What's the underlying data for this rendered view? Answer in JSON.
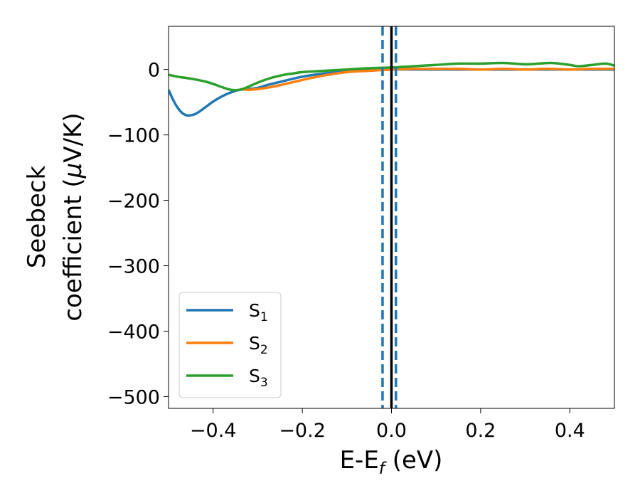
{
  "chart_data": {
    "type": "line",
    "xlabel": {
      "main": "E-E",
      "sub": "f",
      "unit": " (eV)"
    },
    "ylabel": {
      "line1": "Seebeck",
      "line2_prefix": "coefficient  (",
      "mu": "μ",
      "line2_suffix": "V/K)"
    },
    "xlim": [
      -0.5,
      0.5
    ],
    "ylim": [
      -518,
      66
    ],
    "xticks": [
      -0.4,
      -0.2,
      0.0,
      0.2,
      0.4
    ],
    "xtick_labels": [
      "−0.4",
      "−0.2",
      "0.0",
      "0.2",
      "0.4"
    ],
    "yticks": [
      0,
      -100,
      -200,
      -300,
      -400,
      -500
    ],
    "ytick_labels": [
      "0",
      "−100",
      "−200",
      "−300",
      "−400",
      "−500"
    ],
    "grid": false,
    "legend_position": "lower-left",
    "vertical_lines": [
      {
        "x": 0.0,
        "style": "solid",
        "color": "#000000"
      },
      {
        "x": -0.02,
        "style": "dashed",
        "color": "#1f77b4"
      },
      {
        "x": 0.01,
        "style": "dashed",
        "color": "#1f77b4"
      }
    ],
    "series": [
      {
        "name": "S",
        "sub": "1",
        "color": "#1f77b4",
        "x": [
          -0.5,
          -0.49,
          -0.48,
          -0.47,
          -0.46,
          -0.45,
          -0.44,
          -0.43,
          -0.42,
          -0.41,
          -0.4,
          -0.38,
          -0.36,
          -0.34,
          -0.32,
          -0.3,
          -0.28,
          -0.25,
          -0.2,
          -0.15,
          -0.1,
          -0.05,
          0.0,
          0.05,
          0.1,
          0.15,
          0.2,
          0.25,
          0.3,
          0.35,
          0.4,
          0.45,
          0.5
        ],
        "y": [
          -31,
          -46,
          -58,
          -66,
          -70,
          -70,
          -68,
          -64,
          -59,
          -54,
          -49,
          -41,
          -35,
          -31,
          -30,
          -28,
          -24,
          -19,
          -11,
          -6,
          -3,
          -1,
          0,
          0,
          0,
          0,
          0,
          0,
          0,
          0,
          0,
          0,
          0
        ]
      },
      {
        "name": "S",
        "sub": "2",
        "color": "#ff7f0e",
        "x": [
          -0.34,
          -0.32,
          -0.3,
          -0.28,
          -0.25,
          -0.2,
          -0.15,
          -0.1,
          -0.05,
          0.0,
          0.05,
          0.1,
          0.15,
          0.2,
          0.25,
          0.3,
          0.35,
          0.4,
          0.45,
          0.5
        ],
        "y": [
          -30,
          -31,
          -30,
          -28,
          -24,
          -16,
          -9,
          -4,
          -2,
          0,
          1,
          1,
          1,
          0,
          1,
          0,
          1,
          0,
          1,
          1
        ]
      },
      {
        "name": "S",
        "sub": "3",
        "color": "#2ca02c",
        "x": [
          -0.5,
          -0.48,
          -0.45,
          -0.42,
          -0.4,
          -0.38,
          -0.36,
          -0.34,
          -0.32,
          -0.3,
          -0.28,
          -0.26,
          -0.24,
          -0.22,
          -0.2,
          -0.15,
          -0.1,
          -0.05,
          0.0,
          0.05,
          0.1,
          0.15,
          0.2,
          0.25,
          0.3,
          0.33,
          0.36,
          0.4,
          0.42,
          0.45,
          0.48,
          0.5
        ],
        "y": [
          -8,
          -11,
          -14,
          -18,
          -22,
          -27,
          -31,
          -31,
          -26,
          -20,
          -15,
          -11,
          -8,
          -6,
          -4,
          -2,
          0,
          2,
          3,
          5,
          7,
          9,
          9,
          10,
          8,
          9,
          10,
          7,
          5,
          7,
          9,
          6
        ]
      }
    ]
  }
}
